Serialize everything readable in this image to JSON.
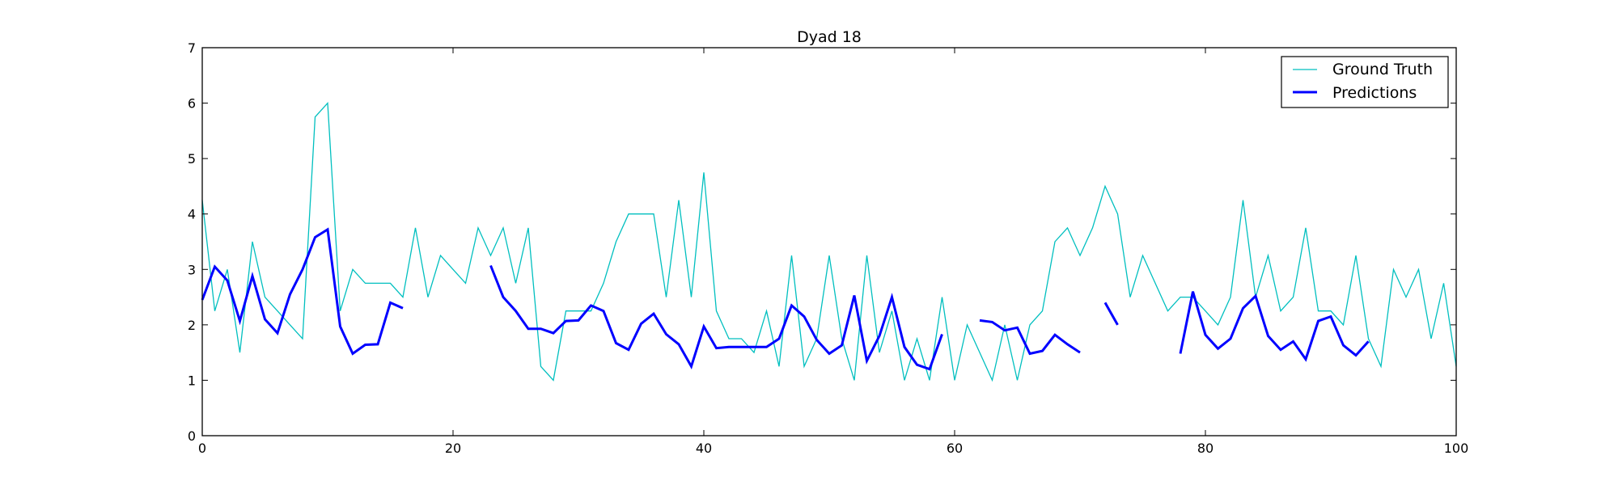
{
  "chart_data": {
    "type": "line",
    "title": "Dyad 18",
    "xlabel": "",
    "ylabel": "",
    "xlim": [
      0,
      100
    ],
    "ylim": [
      0,
      7
    ],
    "xticks": [
      "0",
      "20",
      "40",
      "60",
      "80",
      "100"
    ],
    "yticks": [
      "0",
      "1",
      "2",
      "3",
      "4",
      "5",
      "6",
      "7"
    ],
    "grid": false,
    "legend_position": "top-right",
    "series": [
      {
        "name": "Ground Truth",
        "color": "#00bfbf",
        "x": [
          0,
          1,
          2,
          3,
          4,
          5,
          6,
          7,
          8,
          9,
          10,
          11,
          12,
          13,
          14,
          15,
          16,
          17,
          18,
          19,
          20,
          21,
          22,
          23,
          24,
          25,
          26,
          27,
          28,
          29,
          30,
          31,
          32,
          33,
          34,
          35,
          36,
          37,
          38,
          39,
          40,
          41,
          42,
          43,
          44,
          45,
          46,
          47,
          48,
          49,
          50,
          51,
          52,
          53,
          54,
          55,
          56,
          57,
          58,
          59,
          60,
          61,
          62,
          63,
          64,
          65,
          66,
          67,
          68,
          69,
          70,
          71,
          72,
          73,
          74,
          75,
          76,
          77,
          78,
          79,
          80,
          81,
          82,
          83,
          84,
          85,
          86,
          87,
          88,
          89,
          90,
          91,
          92,
          93,
          94,
          95,
          96,
          97,
          98,
          99,
          100
        ],
        "y": [
          4.25,
          2.25,
          3.0,
          1.5,
          3.5,
          2.5,
          2.25,
          2.0,
          1.75,
          5.75,
          6.0,
          2.25,
          3.0,
          2.75,
          2.75,
          2.75,
          2.5,
          3.75,
          2.5,
          3.25,
          3.0,
          2.75,
          3.75,
          3.25,
          3.75,
          2.75,
          3.75,
          1.25,
          1.0,
          2.25,
          2.25,
          2.25,
          2.75,
          3.5,
          4.0,
          4.0,
          4.0,
          2.5,
          4.25,
          2.5,
          4.75,
          2.25,
          1.75,
          1.75,
          1.5,
          2.25,
          1.25,
          3.25,
          1.25,
          1.75,
          3.25,
          1.75,
          1.0,
          3.25,
          1.5,
          2.25,
          1.0,
          1.75,
          1.0,
          2.5,
          1.0,
          2.0,
          1.5,
          1.0,
          2.0,
          1.0,
          2.0,
          2.25,
          3.5,
          3.75,
          3.25,
          3.75,
          4.5,
          4.0,
          2.5,
          3.25,
          2.75,
          2.25,
          2.5,
          2.5,
          2.25,
          2.0,
          2.5,
          4.25,
          2.5,
          3.25,
          2.25,
          2.5,
          3.75,
          2.25,
          2.25,
          2.0,
          3.25,
          1.75,
          1.25,
          3.0,
          2.5,
          3.0,
          1.75,
          2.75,
          1.25
        ]
      },
      {
        "name": "Predictions",
        "color": "#0000ff",
        "x": [
          0,
          1,
          2,
          3,
          4,
          5,
          6,
          7,
          8,
          9,
          10,
          11,
          12,
          13,
          14,
          15,
          16,
          17,
          18,
          19,
          20,
          21,
          22,
          23,
          24,
          25,
          26,
          27,
          28,
          29,
          30,
          31,
          32,
          33,
          34,
          35,
          36,
          37,
          38,
          39,
          40,
          41,
          42,
          43,
          44,
          45,
          46,
          47,
          48,
          49,
          50,
          51,
          52,
          53,
          54,
          55,
          56,
          57,
          58,
          59,
          60,
          61,
          62,
          63,
          64,
          65,
          66,
          67,
          68,
          69,
          70,
          71,
          72,
          73,
          74,
          75,
          76,
          77,
          78,
          79,
          80,
          81,
          82,
          83,
          84,
          85,
          86,
          87,
          88,
          89,
          90,
          91,
          92,
          93
        ],
        "y": [
          2.45,
          3.05,
          2.8,
          2.07,
          2.88,
          2.1,
          1.85,
          2.55,
          3.0,
          3.58,
          3.72,
          1.97,
          1.48,
          1.64,
          1.65,
          2.4,
          2.3,
          null,
          null,
          null,
          null,
          null,
          null,
          3.07,
          2.5,
          2.25,
          1.93,
          1.93,
          1.85,
          2.07,
          2.08,
          2.35,
          2.25,
          1.67,
          1.55,
          2.02,
          2.2,
          1.83,
          1.65,
          1.25,
          1.97,
          1.58,
          1.6,
          1.6,
          1.6,
          1.6,
          1.75,
          2.35,
          2.15,
          1.73,
          1.48,
          1.63,
          2.53,
          1.35,
          1.8,
          2.5,
          1.6,
          1.28,
          1.2,
          1.83,
          null,
          null,
          2.08,
          2.05,
          1.9,
          1.95,
          1.48,
          1.53,
          1.82,
          1.65,
          1.5,
          null,
          2.4,
          2.0,
          null,
          null,
          null,
          null,
          1.48,
          2.6,
          1.82,
          1.57,
          1.75,
          2.3,
          2.52,
          1.8,
          1.55,
          1.7,
          1.38,
          2.07,
          2.15,
          1.63,
          1.45,
          1.7
        ]
      }
    ]
  }
}
